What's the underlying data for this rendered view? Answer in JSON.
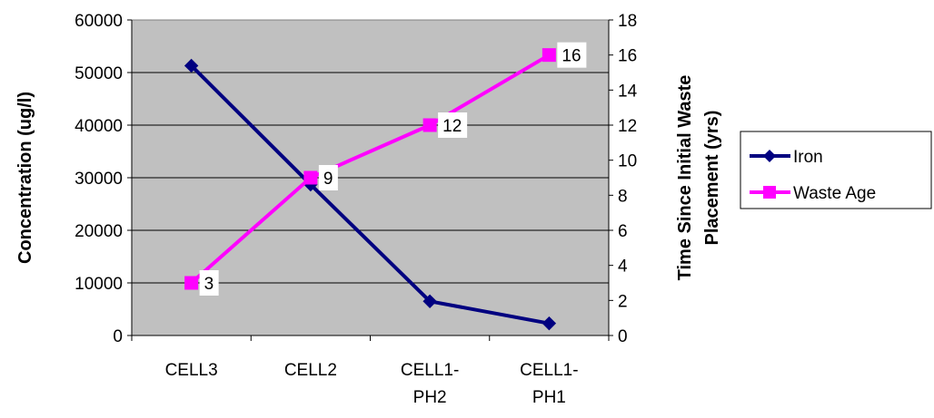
{
  "chart_data": {
    "type": "line",
    "categories": [
      "CELL3",
      "CELL2",
      "CELL1-PH2",
      "CELL1-PH1"
    ],
    "category_lines": [
      [
        "CELL3"
      ],
      [
        "CELL2"
      ],
      [
        "CELL1-",
        "PH2"
      ],
      [
        "CELL1-",
        "PH1"
      ]
    ],
    "ylabel_left": "Concentration (ug/l)",
    "ylabel_right_lines": [
      "Time Since Initial Waste",
      "Placement (yrs)"
    ],
    "ylim_left": [
      0,
      60000
    ],
    "ylim_right": [
      0,
      18
    ],
    "yticks_left": [
      "0",
      "10000",
      "20000",
      "30000",
      "40000",
      "50000",
      "60000"
    ],
    "yticks_right": [
      "0",
      "2",
      "4",
      "6",
      "8",
      "10",
      "12",
      "14",
      "16",
      "18"
    ],
    "grid": true,
    "legend_position": "right",
    "series": [
      {
        "name": "Iron",
        "axis": "left",
        "values": [
          51300,
          28700,
          6500,
          2300
        ],
        "color": "#000080",
        "marker": "diamond"
      },
      {
        "name": "Waste Age",
        "axis": "right",
        "values": [
          3,
          9,
          12,
          16
        ],
        "data_labels": [
          "3",
          "9",
          "12",
          "16"
        ],
        "color": "#FF00FF",
        "marker": "square"
      }
    ],
    "plot_background": "#C0C0C0"
  }
}
